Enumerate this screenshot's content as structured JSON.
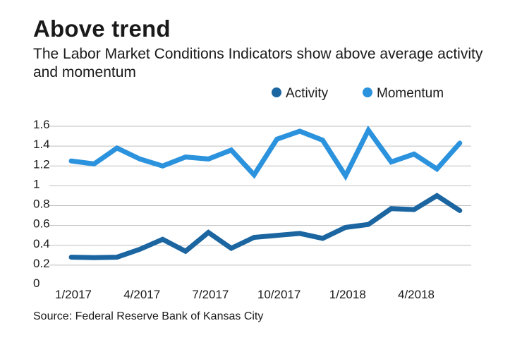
{
  "title": "Above trend",
  "subtitle": "The Labor Market Conditions Indicators show above average activity and momentum",
  "source": "Source: Federal Reserve Bank of Kansas City",
  "colors": {
    "activity": "#1b65a0",
    "momentum": "#2b92dd",
    "grid": "#bfbfbf"
  },
  "chart_data": {
    "type": "line",
    "title": "Above trend",
    "xlabel": "",
    "ylabel": "",
    "ylim": [
      0,
      1.6
    ],
    "yticks": [
      "0",
      "0.2",
      "0.4",
      "0.6",
      "0.8",
      "1",
      "1.2",
      "1.4",
      "1.6"
    ],
    "x_tick_labels": [
      "1/2017",
      "4/2017",
      "7/2017",
      "10/2017",
      "1/2018",
      "4/2018"
    ],
    "x_tick_index": [
      0,
      3,
      6,
      9,
      12,
      15
    ],
    "x": [
      "1/2017",
      "2/2017",
      "3/2017",
      "4/2017",
      "5/2017",
      "6/2017",
      "7/2017",
      "8/2017",
      "9/2017",
      "10/2017",
      "11/2017",
      "12/2017",
      "1/2018",
      "2/2018",
      "3/2018",
      "4/2018",
      "5/2018",
      "6/2018"
    ],
    "legend": "top-right",
    "series": [
      {
        "name": "Activity",
        "values": [
          0.28,
          0.275,
          0.28,
          0.36,
          0.46,
          0.34,
          0.53,
          0.37,
          0.48,
          0.5,
          0.52,
          0.47,
          0.58,
          0.61,
          0.77,
          0.76,
          0.9,
          0.75
        ]
      },
      {
        "name": "Momentum",
        "values": [
          1.25,
          1.22,
          1.38,
          1.27,
          1.2,
          1.29,
          1.27,
          1.36,
          1.11,
          1.47,
          1.55,
          1.46,
          1.1,
          1.56,
          1.24,
          1.32,
          1.17,
          1.43
        ]
      }
    ]
  }
}
